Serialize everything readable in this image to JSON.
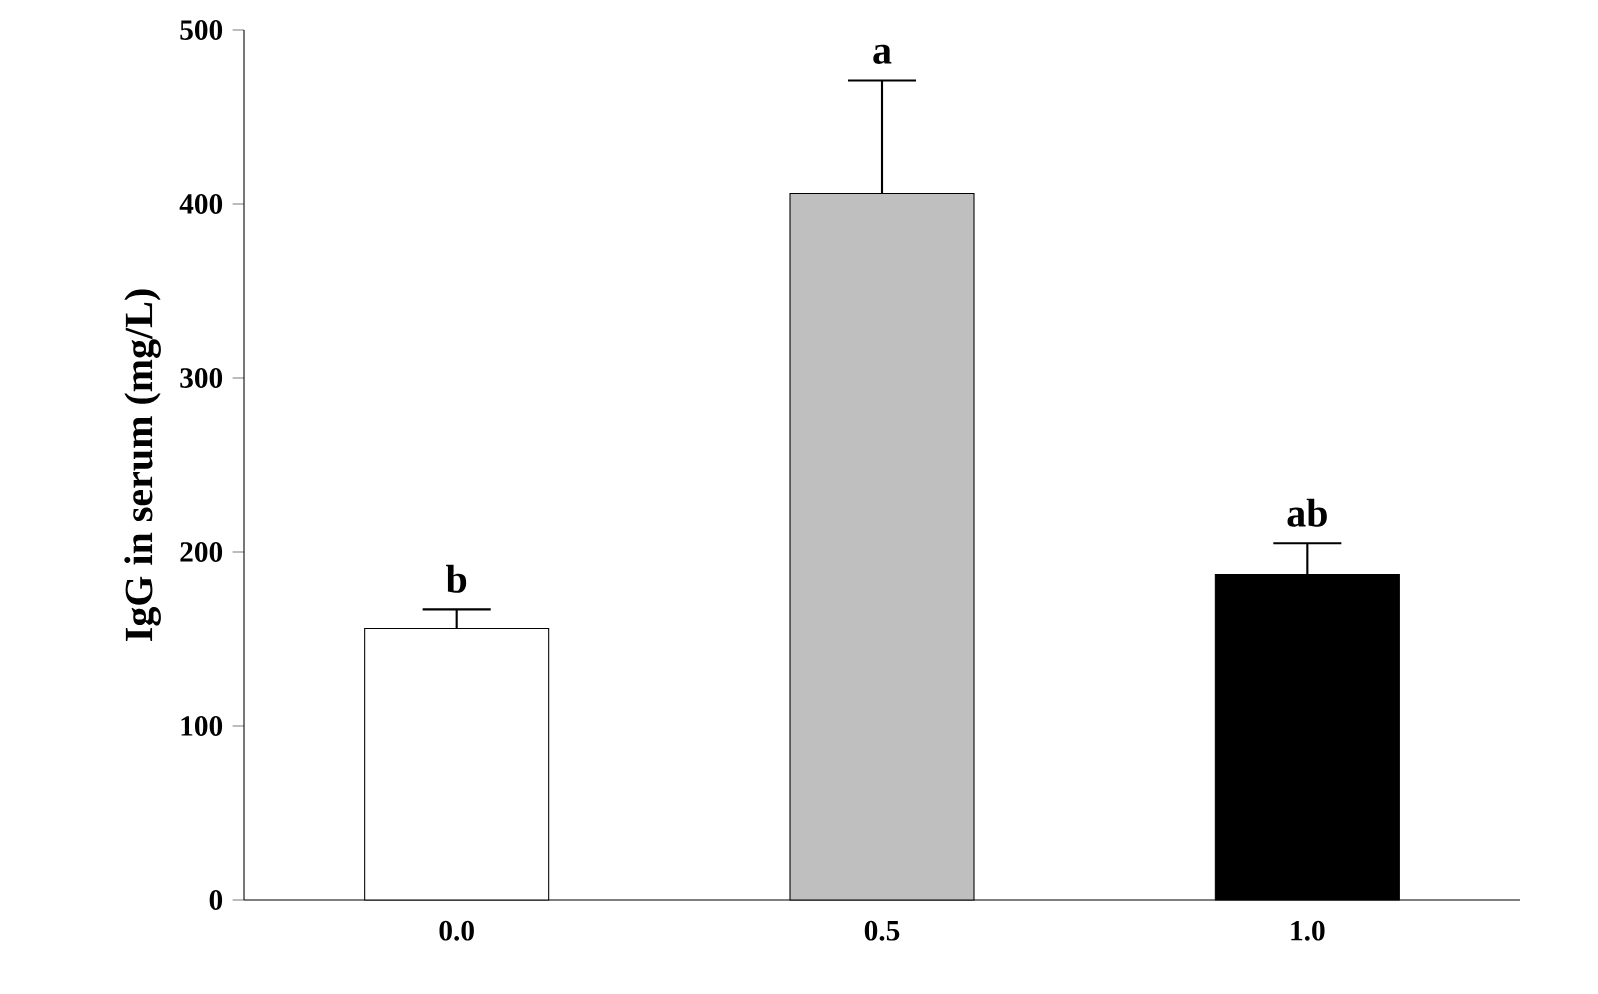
{
  "chart_data": {
    "type": "bar",
    "ylabel": "IgG in serum (mg/L)",
    "categories": [
      "0.0",
      "0.5",
      "1.0"
    ],
    "values": [
      156,
      406,
      187
    ],
    "colors": [
      "#ffffff",
      "#bfbfbf",
      "#000000"
    ],
    "errors": [
      [
        156,
        167
      ],
      [
        406,
        471
      ],
      [
        187,
        205
      ]
    ],
    "ylim": [
      0,
      500
    ],
    "yticks": [
      0,
      100,
      200,
      300,
      400,
      500
    ],
    "annotations": [
      {
        "text": "b",
        "x": "0.0",
        "y": 167
      },
      {
        "text": "a",
        "x": "0.5",
        "y": 471
      },
      {
        "text": "ab",
        "x": "1.0",
        "y": 205
      }
    ]
  }
}
